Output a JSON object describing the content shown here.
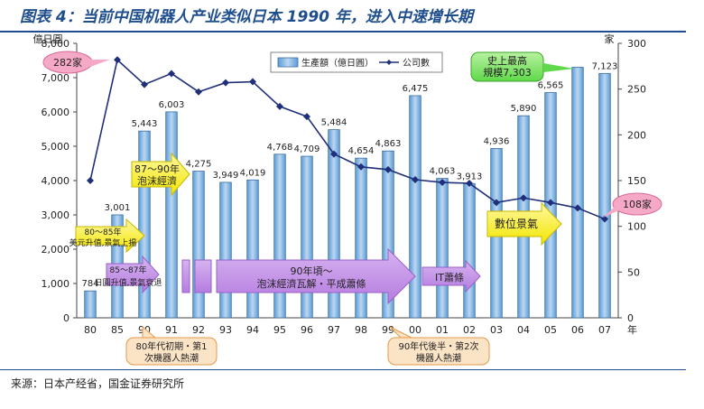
{
  "header": {
    "title": "图表 4：当前中国机器人产业类似日本 1990 年，进入中速增长期"
  },
  "source": "来源：日本产经省，国金证券研究所",
  "chart_data": {
    "type": "bar",
    "categories": [
      "80",
      "85",
      "90",
      "91",
      "92",
      "93",
      "94",
      "95",
      "96",
      "97",
      "98",
      "99",
      "00",
      "01",
      "02",
      "03",
      "04",
      "05",
      "06",
      "07"
    ],
    "series": [
      {
        "name": "生產額（億日圓）",
        "type": "bar",
        "axis": "left",
        "values": [
          784,
          3001,
          5443,
          6003,
          4275,
          3949,
          4019,
          4768,
          4709,
          5484,
          4654,
          4863,
          6475,
          4063,
          3913,
          4936,
          5890,
          6565,
          7303,
          7123
        ],
        "labels": [
          "784",
          "3,001",
          "5,443",
          "6,003",
          "4,275",
          "3,949",
          "4,019",
          "4,768",
          "4,709",
          "5,484",
          "4,654",
          "4,863",
          "6,475",
          "4,063",
          "3,913",
          "4,936",
          "5,890",
          "6,565",
          "",
          "7,123"
        ]
      },
      {
        "name": "公司數",
        "type": "line",
        "axis": "right",
        "values": [
          150,
          282,
          255,
          267,
          247,
          257,
          258,
          231,
          220,
          179,
          165,
          162,
          151,
          148,
          147,
          126,
          131,
          126,
          120,
          108
        ]
      }
    ],
    "ylabel_left": "億日圓",
    "ylabel_right": "家",
    "xlabel": "年",
    "ylim_left": [
      0,
      8000
    ],
    "ylim_right": [
      0,
      300
    ],
    "yticks_left": [
      "0",
      "1,000",
      "2,000",
      "3,000",
      "4,000",
      "5,000",
      "6,000",
      "7,000",
      "8,000"
    ],
    "yticks_right": [
      "0",
      "50",
      "100",
      "150",
      "200",
      "250",
      "300"
    ],
    "legend_position": "top",
    "annotations": {
      "peak_companies": "282家",
      "low_companies": "108家",
      "record": "史上最高\n規模7,303",
      "bubble_80_85": "80～85年\n美元升值,景氣上揚",
      "bubble_85_87": "85～87年\n日圓升值,景氣衰退",
      "bubble_87_90": "87～90年\n泡沫經濟",
      "bubble_90s": "90年頃～\n泡沫經濟瓦解・平成蕭條",
      "bubble_it": "IT蕭條",
      "bubble_digital": "數位景氣",
      "wave1": "80年代初期・第1\n次機器人熱潮",
      "wave2": "90年代後半・第2次\n機器人熱潮"
    }
  }
}
